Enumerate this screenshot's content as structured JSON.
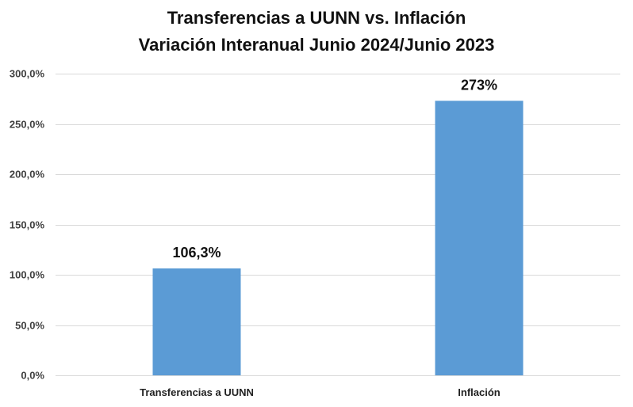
{
  "chart_data": {
    "type": "bar",
    "title": "Transferencias a UUNN vs. Inflación",
    "subtitle": "Variación Interanual Junio 2024/Junio 2023",
    "categories": [
      "Transferencias a UUNN",
      "Inflación"
    ],
    "values": [
      106.3,
      273
    ],
    "data_labels": [
      "106,3%",
      "273%"
    ],
    "ylim": [
      0,
      300
    ],
    "yticks": [
      0,
      50,
      100,
      150,
      200,
      250,
      300
    ],
    "ytick_labels": [
      "0,0%",
      "50,0%",
      "100,0%",
      "150,0%",
      "200,0%",
      "250,0%",
      "300,0%"
    ],
    "xlabel": "",
    "ylabel": "",
    "grid": true,
    "legend": "none",
    "colors": {
      "bar": "#5b9bd5",
      "grid": "#d9d9d9"
    }
  }
}
